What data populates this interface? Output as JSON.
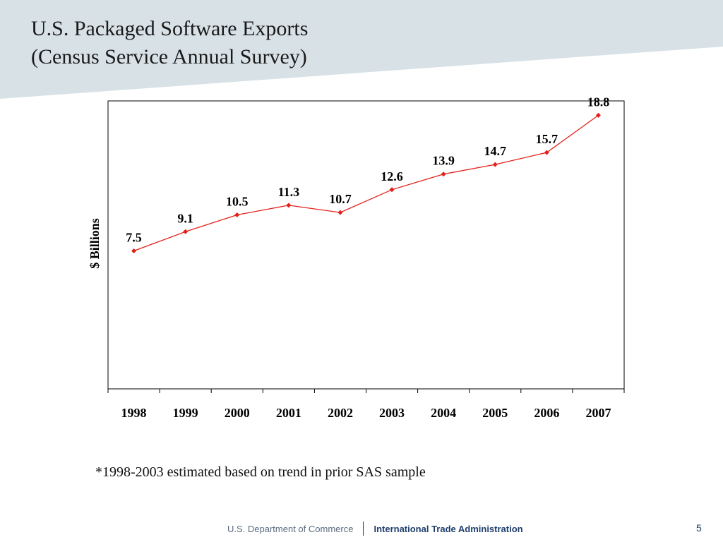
{
  "slide": {
    "title_line1": "U.S. Packaged Software Exports",
    "title_line2": " (Census Service Annual Survey)",
    "footnote": "*1998-2003 estimated based on trend in prior SAS sample",
    "page_number": "5"
  },
  "footer": {
    "department": "U.S. Department of Commerce",
    "agency": "International Trade Administration"
  },
  "colors": {
    "header_band": "#d7e1e6",
    "series_line": "#e3201b",
    "axis": "#000000"
  },
  "chart_data": {
    "type": "line",
    "title": "",
    "xlabel": "",
    "ylabel": "$ Billions",
    "categories": [
      "1998",
      "1999",
      "2000",
      "2001",
      "2002",
      "2003",
      "2004",
      "2005",
      "2006",
      "2007"
    ],
    "series": [
      {
        "values": [
          7.5,
          9.1,
          10.5,
          11.3,
          10.7,
          12.6,
          13.9,
          14.7,
          15.7,
          18.8
        ],
        "data_labels": [
          "7.5",
          "9.1",
          "10.5",
          "11.3",
          "10.7",
          "12.6",
          "13.9",
          "14.7",
          "15.7",
          "18.8"
        ]
      }
    ],
    "ylim": [
      -4,
      20
    ],
    "y_ticks_shown": false,
    "grid": false,
    "legend": "none"
  }
}
